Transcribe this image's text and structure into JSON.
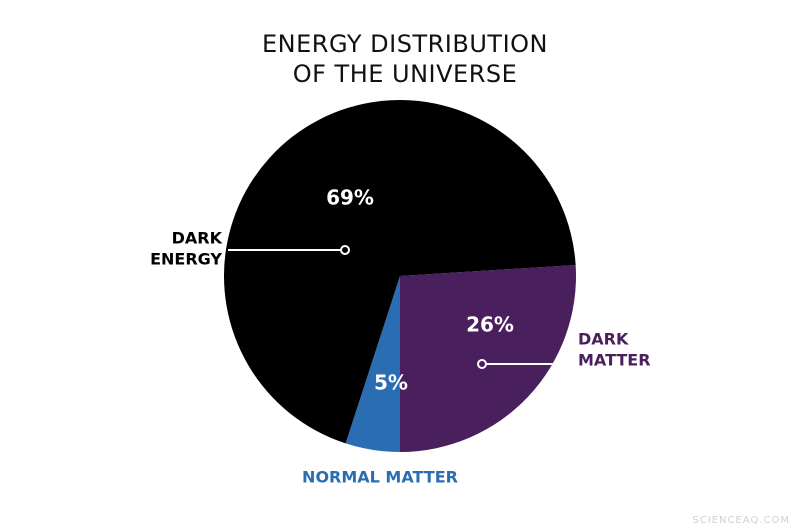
{
  "chart_data": {
    "type": "pie",
    "title": [
      "ENERGY DISTRIBUTION",
      "OF THE UNIVERSE"
    ],
    "categories": [
      [
        "DARK",
        "MATTER"
      ],
      [
        "NORMAL MATTER"
      ],
      [
        "DARK",
        "ENERGY"
      ]
    ],
    "values": [
      26,
      5,
      69
    ],
    "value_labels": [
      "26%",
      "5%",
      "69%"
    ],
    "colors": [
      "#4a1f5e",
      "#2a6db3",
      "#000000"
    ],
    "label_colors": [
      "#4a1f5e",
      "#2a6db3",
      "#000000"
    ],
    "watermark": "SCIENCEAQ.COM"
  }
}
